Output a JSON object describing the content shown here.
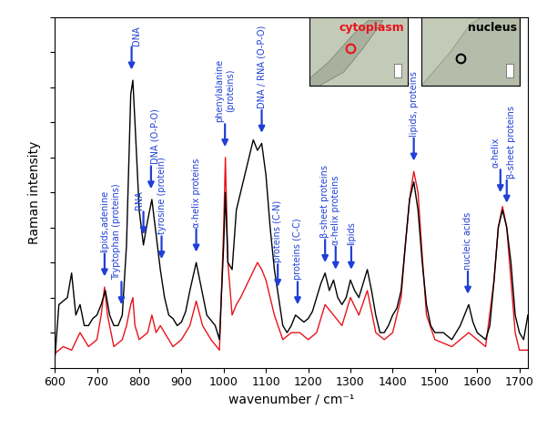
{
  "chart_data": {
    "type": "line",
    "x_label": "wavenumber / cm⁻¹",
    "y_label": "Raman intensity",
    "xlim": [
      600,
      1720
    ],
    "ylim": [
      0,
      1
    ],
    "xticks": [
      600,
      700,
      800,
      900,
      1000,
      1100,
      1200,
      1300,
      1400,
      1500,
      1600,
      1700
    ],
    "yticks": [
      0,
      0.1,
      0.2,
      0.3,
      0.4,
      0.5,
      0.6,
      0.7,
      0.8,
      0.9,
      1
    ],
    "tick_labels": "x",
    "series": [
      {
        "name": "cytoplasm",
        "color": "#e8141b",
        "x": [
          600,
          620,
          640,
          660,
          680,
          700,
          710,
          718,
          725,
          740,
          760,
          770,
          780,
          785,
          790,
          800,
          820,
          830,
          840,
          850,
          860,
          880,
          900,
          920,
          935,
          950,
          970,
          990,
          1000,
          1004,
          1010,
          1020,
          1030,
          1040,
          1060,
          1080,
          1090,
          1100,
          1120,
          1140,
          1160,
          1180,
          1200,
          1220,
          1240,
          1260,
          1280,
          1300,
          1320,
          1340,
          1360,
          1380,
          1400,
          1420,
          1430,
          1440,
          1450,
          1460,
          1470,
          1480,
          1500,
          1540,
          1580,
          1600,
          1620,
          1640,
          1650,
          1660,
          1670,
          1680,
          1690,
          1700,
          1720
        ],
        "values": [
          0.04,
          0.06,
          0.05,
          0.1,
          0.06,
          0.08,
          0.15,
          0.23,
          0.15,
          0.06,
          0.08,
          0.12,
          0.18,
          0.2,
          0.12,
          0.08,
          0.1,
          0.15,
          0.1,
          0.12,
          0.1,
          0.06,
          0.08,
          0.12,
          0.19,
          0.12,
          0.08,
          0.05,
          0.4,
          0.6,
          0.3,
          0.15,
          0.18,
          0.2,
          0.25,
          0.3,
          0.28,
          0.25,
          0.15,
          0.08,
          0.1,
          0.1,
          0.08,
          0.1,
          0.18,
          0.15,
          0.12,
          0.2,
          0.15,
          0.22,
          0.1,
          0.08,
          0.1,
          0.2,
          0.35,
          0.48,
          0.56,
          0.5,
          0.32,
          0.15,
          0.08,
          0.06,
          0.1,
          0.08,
          0.06,
          0.25,
          0.4,
          0.46,
          0.4,
          0.25,
          0.1,
          0.05,
          0.05
        ]
      },
      {
        "name": "nucleus",
        "color": "#000000",
        "x": [
          600,
          610,
          630,
          640,
          650,
          660,
          670,
          680,
          690,
          700,
          710,
          720,
          730,
          740,
          750,
          760,
          770,
          780,
          785,
          790,
          800,
          810,
          820,
          830,
          840,
          850,
          860,
          870,
          880,
          890,
          900,
          910,
          920,
          935,
          945,
          960,
          980,
          990,
          1000,
          1004,
          1010,
          1020,
          1030,
          1040,
          1050,
          1060,
          1070,
          1080,
          1090,
          1100,
          1110,
          1120,
          1130,
          1140,
          1150,
          1160,
          1170,
          1180,
          1190,
          1200,
          1210,
          1220,
          1230,
          1240,
          1250,
          1260,
          1270,
          1280,
          1290,
          1300,
          1310,
          1320,
          1330,
          1340,
          1350,
          1360,
          1370,
          1380,
          1390,
          1400,
          1410,
          1420,
          1430,
          1440,
          1450,
          1460,
          1470,
          1480,
          1490,
          1500,
          1520,
          1540,
          1560,
          1570,
          1580,
          1590,
          1600,
          1620,
          1630,
          1640,
          1650,
          1660,
          1670,
          1680,
          1690,
          1700,
          1710,
          1720
        ],
        "values": [
          0.02,
          0.18,
          0.2,
          0.27,
          0.15,
          0.18,
          0.12,
          0.12,
          0.14,
          0.15,
          0.18,
          0.22,
          0.15,
          0.12,
          0.12,
          0.15,
          0.35,
          0.78,
          0.82,
          0.7,
          0.45,
          0.35,
          0.42,
          0.48,
          0.38,
          0.28,
          0.2,
          0.15,
          0.14,
          0.12,
          0.13,
          0.16,
          0.22,
          0.3,
          0.24,
          0.15,
          0.12,
          0.08,
          0.35,
          0.5,
          0.3,
          0.28,
          0.45,
          0.5,
          0.55,
          0.6,
          0.65,
          0.62,
          0.64,
          0.55,
          0.4,
          0.28,
          0.2,
          0.12,
          0.1,
          0.12,
          0.15,
          0.14,
          0.13,
          0.14,
          0.16,
          0.2,
          0.24,
          0.27,
          0.22,
          0.25,
          0.2,
          0.18,
          0.2,
          0.25,
          0.22,
          0.2,
          0.24,
          0.28,
          0.22,
          0.15,
          0.1,
          0.1,
          0.12,
          0.15,
          0.17,
          0.22,
          0.35,
          0.48,
          0.53,
          0.45,
          0.3,
          0.18,
          0.12,
          0.1,
          0.1,
          0.08,
          0.12,
          0.15,
          0.18,
          0.13,
          0.1,
          0.08,
          0.12,
          0.25,
          0.4,
          0.45,
          0.4,
          0.3,
          0.15,
          0.1,
          0.08,
          0.15
        ]
      }
    ],
    "annotations": [
      {
        "text": "lipids,adenine",
        "x": 718,
        "y": 0.26
      },
      {
        "text": "Tryptophan (proteins)",
        "x": 758,
        "y": 0.18
      },
      {
        "text": "DNA",
        "x": 782,
        "y": 0.85
      },
      {
        "text": "RNA",
        "x": 810,
        "y": 0.38
      },
      {
        "text": "DNA (O-P-O)",
        "x": 828,
        "y": 0.51
      },
      {
        "text": "tyrosine (protein)",
        "x": 853,
        "y": 0.31
      },
      {
        "text": "α-helix proteins",
        "x": 935,
        "y": 0.33
      },
      {
        "text": "phenylalanine\n(proteins)",
        "x": 1003,
        "y": 0.63
      },
      {
        "text": "DNA / RNA (O-P-O)",
        "x": 1090,
        "y": 0.67
      },
      {
        "text": "proteins (C-N)",
        "x": 1128,
        "y": 0.23
      },
      {
        "text": "proteins (C-C)",
        "x": 1175,
        "y": 0.18
      },
      {
        "text": "β-sheet proteins",
        "x": 1240,
        "y": 0.3
      },
      {
        "text": "α-helix proteins",
        "x": 1265,
        "y": 0.28
      },
      {
        "text": "lipids",
        "x": 1302,
        "y": 0.28
      },
      {
        "text": "lipids, proteins",
        "x": 1450,
        "y": 0.59
      },
      {
        "text": "nucleic acids",
        "x": 1578,
        "y": 0.21
      },
      {
        "text": "α-helix",
        "x": 1655,
        "y": 0.5
      },
      {
        "text": "β-sheet proteins",
        "x": 1670,
        "y": 0.47
      }
    ]
  }
}
